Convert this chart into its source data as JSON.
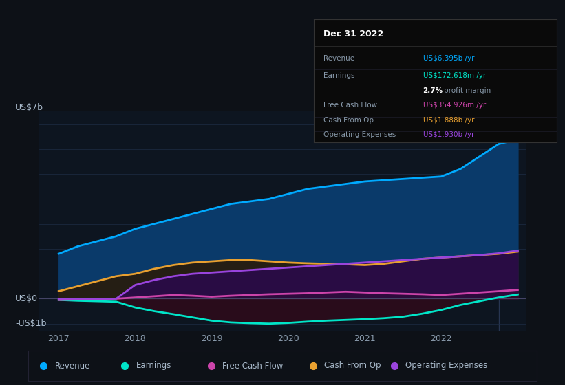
{
  "background_color": "#0d1117",
  "chart_bg": "#0d1520",
  "ylabel_top": "US$7b",
  "ylabel_zero": "US$0",
  "ylabel_neg": "-US$1b",
  "x_years": [
    2017.0,
    2017.25,
    2017.5,
    2017.75,
    2018.0,
    2018.25,
    2018.5,
    2018.75,
    2019.0,
    2019.25,
    2019.5,
    2019.75,
    2020.0,
    2020.25,
    2020.5,
    2020.75,
    2021.0,
    2021.25,
    2021.5,
    2021.75,
    2022.0,
    2022.25,
    2022.5,
    2022.75,
    2023.0
  ],
  "revenue": [
    1.8,
    2.1,
    2.3,
    2.5,
    2.8,
    3.0,
    3.2,
    3.4,
    3.6,
    3.8,
    3.9,
    4.0,
    4.2,
    4.4,
    4.5,
    4.6,
    4.7,
    4.75,
    4.8,
    4.85,
    4.9,
    5.2,
    5.7,
    6.2,
    6.395
  ],
  "earnings": [
    -0.05,
    -0.08,
    -0.1,
    -0.12,
    -0.35,
    -0.5,
    -0.62,
    -0.75,
    -0.88,
    -0.95,
    -0.98,
    -1.0,
    -0.97,
    -0.92,
    -0.88,
    -0.85,
    -0.82,
    -0.78,
    -0.72,
    -0.6,
    -0.45,
    -0.25,
    -0.1,
    0.05,
    0.172
  ],
  "free_cash_flow": [
    -0.05,
    -0.03,
    -0.02,
    0.0,
    0.05,
    0.1,
    0.15,
    0.12,
    0.08,
    0.12,
    0.15,
    0.18,
    0.2,
    0.22,
    0.25,
    0.28,
    0.25,
    0.22,
    0.2,
    0.18,
    0.15,
    0.2,
    0.25,
    0.3,
    0.355
  ],
  "cash_from_op": [
    0.3,
    0.5,
    0.7,
    0.9,
    1.0,
    1.2,
    1.35,
    1.45,
    1.5,
    1.55,
    1.55,
    1.5,
    1.45,
    1.42,
    1.4,
    1.38,
    1.35,
    1.4,
    1.5,
    1.6,
    1.65,
    1.7,
    1.75,
    1.8,
    1.888
  ],
  "operating_expenses": [
    0.0,
    0.0,
    0.0,
    0.0,
    0.55,
    0.75,
    0.9,
    1.0,
    1.05,
    1.1,
    1.15,
    1.2,
    1.25,
    1.3,
    1.35,
    1.4,
    1.45,
    1.5,
    1.55,
    1.6,
    1.65,
    1.7,
    1.75,
    1.82,
    1.93
  ],
  "revenue_color": "#00aaff",
  "revenue_fill": "#0a3a6a",
  "earnings_color": "#00e5c8",
  "free_cash_flow_color": "#cc44aa",
  "cash_from_op_color": "#e8a030",
  "operating_expenses_color": "#9944dd",
  "line_width": 2.0,
  "grid_color": "#1e2d45",
  "zero_line_color": "#444466",
  "tick_color": "#8899aa",
  "text_color": "#aabbcc",
  "tooltip_bg": "#0a0a0a",
  "tooltip_border": "#333333",
  "ylim": [
    -1.3,
    7.5
  ],
  "yticks": [
    -1,
    0,
    1,
    2,
    3,
    4,
    5,
    6,
    7
  ],
  "xticks": [
    2017,
    2018,
    2019,
    2020,
    2021,
    2022
  ],
  "legend_items": [
    "Revenue",
    "Earnings",
    "Free Cash Flow",
    "Cash From Op",
    "Operating Expenses"
  ],
  "legend_colors": [
    "#00aaff",
    "#00e5c8",
    "#cc44aa",
    "#e8a030",
    "#9944dd"
  ],
  "tooltip": {
    "title": "Dec 31 2022",
    "revenue_label": "Revenue",
    "revenue_value": "US$6.395b",
    "revenue_color": "#00aaff",
    "earnings_label": "Earnings",
    "earnings_value": "US$172.618m",
    "earnings_color": "#00e5c8",
    "fcf_label": "Free Cash Flow",
    "fcf_value": "US$354.926m",
    "fcf_color": "#cc44aa",
    "cfop_label": "Cash From Op",
    "cfop_value": "US$1.888b",
    "cfop_color": "#e8a030",
    "opex_label": "Operating Expenses",
    "opex_value": "US$1.930b",
    "opex_color": "#9944dd"
  }
}
